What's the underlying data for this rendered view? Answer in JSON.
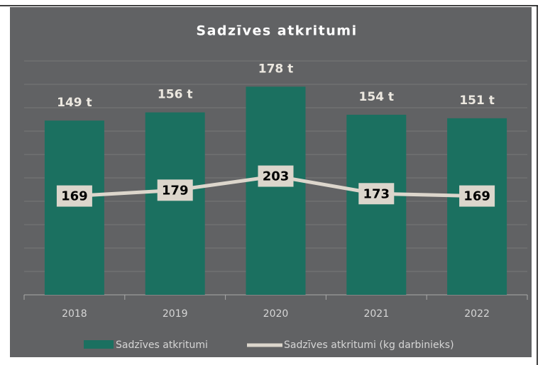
{
  "chart_data": {
    "type": "bar-line",
    "title": "Sadzīves atkritumi",
    "categories": [
      "2018",
      "2019",
      "2020",
      "2021",
      "2022"
    ],
    "series": [
      {
        "name": "Sadzīves atkritumi",
        "type": "bar",
        "color": "#1b7060",
        "values": [
          149,
          156,
          178,
          154,
          151
        ],
        "value_labels": [
          "149 t",
          "156 t",
          "178 t",
          "154 t",
          "151 t"
        ]
      },
      {
        "name": "Sadzīves atkritumi (kg darbinieks)",
        "type": "line",
        "axis": "y2",
        "color": "#dcd6cc",
        "values": [
          169,
          179,
          203,
          173,
          169
        ]
      }
    ],
    "ylim": [
      0,
      200
    ],
    "yticks": [
      0,
      20,
      40,
      60,
      80,
      100,
      120,
      140,
      160,
      180,
      200
    ],
    "y2lim": [
      0,
      400
    ],
    "grid": true,
    "legend": "bottom"
  }
}
